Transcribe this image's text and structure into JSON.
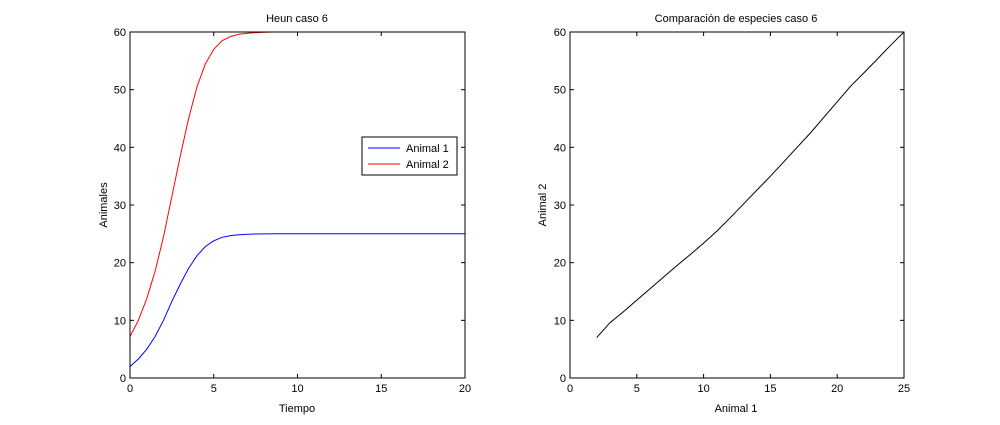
{
  "chart_data": [
    {
      "type": "line",
      "title": "Heun caso 6",
      "xlabel": "Tiempo",
      "ylabel": "Animales",
      "xlim": [
        0,
        20
      ],
      "ylim": [
        0,
        60
      ],
      "xticks": [
        0,
        5,
        10,
        15,
        20
      ],
      "yticks": [
        0,
        10,
        20,
        30,
        40,
        50,
        60
      ],
      "grid": false,
      "legend_position": "right, middle",
      "series": [
        {
          "name": "Animal 1",
          "color": "#0000ff",
          "x": [
            0,
            0.5,
            1,
            1.5,
            2,
            2.5,
            3,
            3.5,
            4,
            4.5,
            5,
            5.5,
            6,
            6.5,
            7,
            7.5,
            8,
            9,
            10,
            12,
            14,
            16,
            18,
            20
          ],
          "y": [
            2.0,
            3.3,
            5.0,
            7.2,
            10.0,
            13.3,
            16.3,
            19.0,
            21.2,
            22.8,
            23.8,
            24.4,
            24.7,
            24.85,
            24.93,
            24.97,
            24.99,
            25,
            25,
            25,
            25,
            25,
            25,
            25
          ]
        },
        {
          "name": "Animal 2",
          "color": "#ff0000",
          "x": [
            0,
            0.5,
            1,
            1.5,
            2,
            2.5,
            3,
            3.5,
            4,
            4.5,
            5,
            5.5,
            6,
            6.5,
            7,
            7.5,
            8,
            8.5,
            9.2
          ],
          "y": [
            7.2,
            10.0,
            13.8,
            18.5,
            24.5,
            31.5,
            38.5,
            45.0,
            50.5,
            54.5,
            57.0,
            58.5,
            59.2,
            59.6,
            59.8,
            59.9,
            59.95,
            60,
            60
          ]
        }
      ]
    },
    {
      "type": "line",
      "title": "Comparación de especies caso 6",
      "xlabel": "Animal 1",
      "ylabel": "Animal 2",
      "xlim": [
        0,
        25
      ],
      "ylim": [
        0,
        60
      ],
      "xticks": [
        0,
        5,
        10,
        15,
        20,
        25
      ],
      "yticks": [
        0,
        10,
        20,
        30,
        40,
        50,
        60
      ],
      "grid": false,
      "series": [
        {
          "color": "#000000",
          "x": [
            2.0,
            3.0,
            4.0,
            5.0,
            6.0,
            7.0,
            8.0,
            9.0,
            10.0,
            11.0,
            12.0,
            13.0,
            14.0,
            15.0,
            16.0,
            17.0,
            18.0,
            19.0,
            20.0,
            21.0,
            22.0,
            23.0,
            24.0,
            25.0
          ],
          "y": [
            7.0,
            9.6,
            11.5,
            13.5,
            15.5,
            17.5,
            19.5,
            21.4,
            23.4,
            25.5,
            27.8,
            30.2,
            32.6,
            35.0,
            37.5,
            40.0,
            42.5,
            45.2,
            47.9,
            50.6,
            52.9,
            55.3,
            57.7,
            60.0
          ]
        }
      ]
    }
  ]
}
